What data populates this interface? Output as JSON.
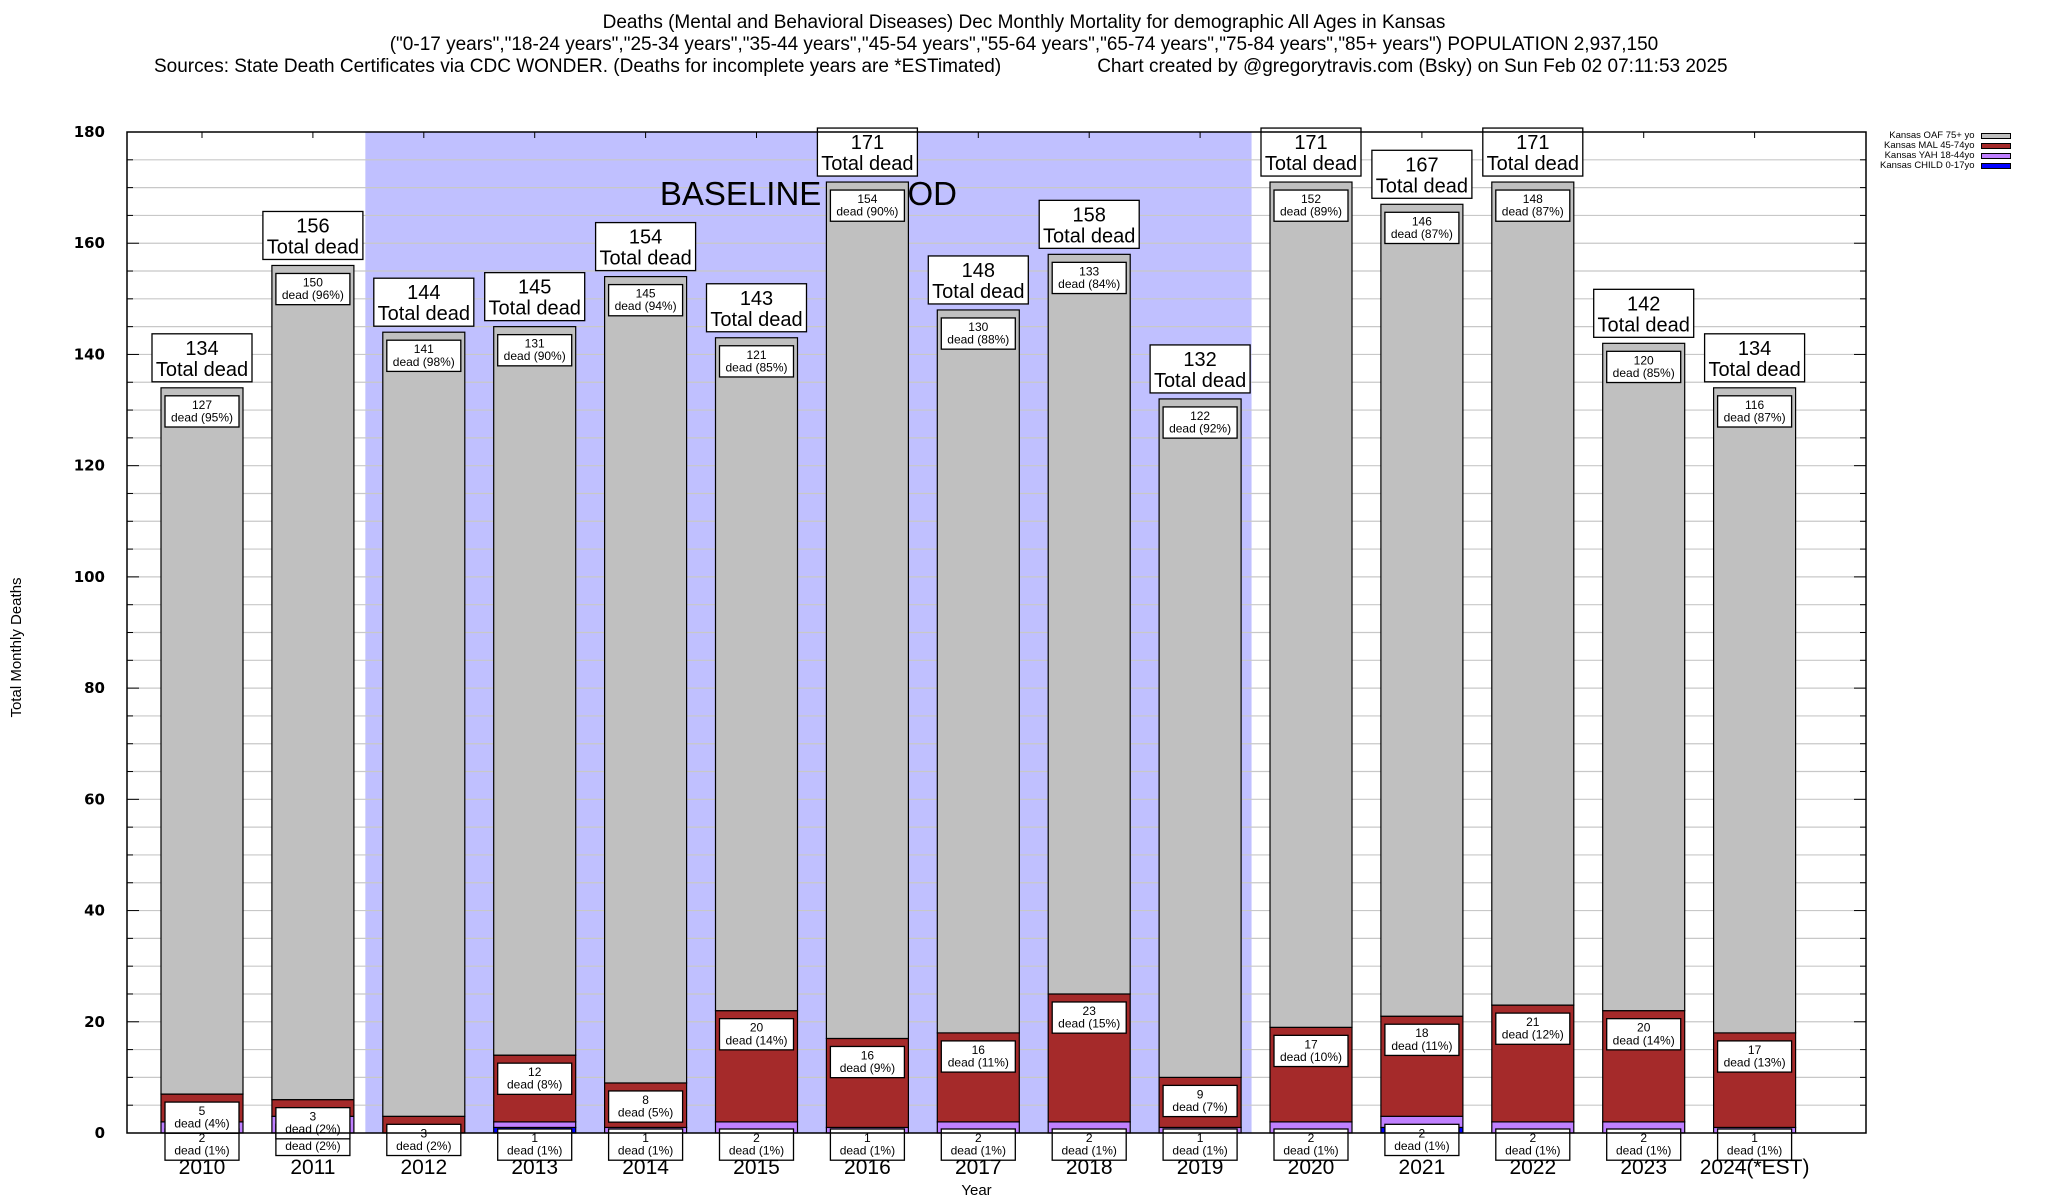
{
  "chart_data": {
    "type": "bar",
    "stacked": true,
    "title": "Deaths (Mental and Behavioral Diseases) Dec Monthly Mortality for demographic All Ages in Kansas",
    "subtitle": "(\"0-17 years\",\"18-24 years\",\"25-34 years\",\"35-44 years\",\"45-54 years\",\"55-64 years\",\"65-74 years\",\"75-84 years\",\"85+ years\") POPULATION 2,937,150",
    "sources": "Sources: State Death Certificates via CDC WONDER. (Deaths for incomplete years are *ESTimated)",
    "credit": "Chart created by @gregorytravis.com (Bsky) on Sun Feb 02 07:11:53 2025",
    "xlabel": "Year",
    "ylabel": "Total Monthly Deaths",
    "ylim": [
      0,
      180
    ],
    "yticks": [
      0,
      20,
      40,
      60,
      80,
      100,
      120,
      140,
      160,
      180
    ],
    "grid": true,
    "legend_position": "top-right",
    "categories": [
      "2010",
      "2011",
      "2012",
      "2013",
      "2014",
      "2015",
      "2016",
      "2017",
      "2018",
      "2019",
      "2020",
      "2021",
      "2022",
      "2023",
      "2024(*EST)"
    ],
    "totals": [
      134,
      156,
      144,
      145,
      154,
      143,
      171,
      148,
      158,
      132,
      171,
      167,
      171,
      142,
      134
    ],
    "total_label_suffix": "Total dead",
    "series": [
      {
        "name": "Kansas CHILD 0-17yo",
        "color": "#0000ff",
        "values": [
          0,
          0,
          0,
          1,
          0,
          0,
          0,
          0,
          0,
          0,
          0,
          1,
          0,
          0,
          0
        ],
        "percents": [
          null,
          null,
          null,
          null,
          null,
          null,
          null,
          null,
          null,
          null,
          null,
          null,
          null,
          null,
          null
        ]
      },
      {
        "name": "Kansas YAH 18-44yo",
        "color": "#c080ff",
        "values": [
          2,
          3,
          0,
          1,
          1,
          2,
          1,
          2,
          2,
          1,
          2,
          2,
          2,
          2,
          1
        ],
        "percents": [
          "1%",
          "2%",
          null,
          "1%",
          "1%",
          "1%",
          "1%",
          "1%",
          "1%",
          "1%",
          "1%",
          "1%",
          "1%",
          "1%",
          "1%"
        ]
      },
      {
        "name": "Kansas MAL 45-74yo",
        "color": "#a52a2a",
        "values": [
          5,
          3,
          3,
          12,
          8,
          20,
          16,
          16,
          23,
          9,
          17,
          18,
          21,
          20,
          17
        ],
        "percents": [
          "4%",
          "2%",
          "2%",
          "8%",
          "5%",
          "14%",
          "9%",
          "11%",
          "15%",
          "7%",
          "10%",
          "11%",
          "12%",
          "14%",
          "13%"
        ]
      },
      {
        "name": "Kansas OAF 75+ yo",
        "color": "#c0c0c0",
        "values": [
          127,
          150,
          141,
          131,
          145,
          121,
          154,
          130,
          133,
          122,
          152,
          146,
          148,
          120,
          116
        ],
        "percents": [
          "95%",
          "96%",
          "98%",
          "90%",
          "94%",
          "85%",
          "90%",
          "88%",
          "84%",
          "92%",
          "89%",
          "87%",
          "87%",
          "85%",
          "87%"
        ]
      }
    ],
    "segment_label_word": "dead",
    "annotation": {
      "text": "BASELINE PERIOD",
      "from": "2012",
      "to": "2019",
      "color": "#c0c0ff"
    }
  },
  "legend": [
    {
      "label": "Kansas OAF 75+ yo",
      "color": "#c0c0c0"
    },
    {
      "label": "Kansas MAL 45-74yo",
      "color": "#a52a2a"
    },
    {
      "label": "Kansas YAH 18-44yo",
      "color": "#c080ff"
    },
    {
      "label": "Kansas CHILD 0-17yo",
      "color": "#0000ff"
    }
  ]
}
